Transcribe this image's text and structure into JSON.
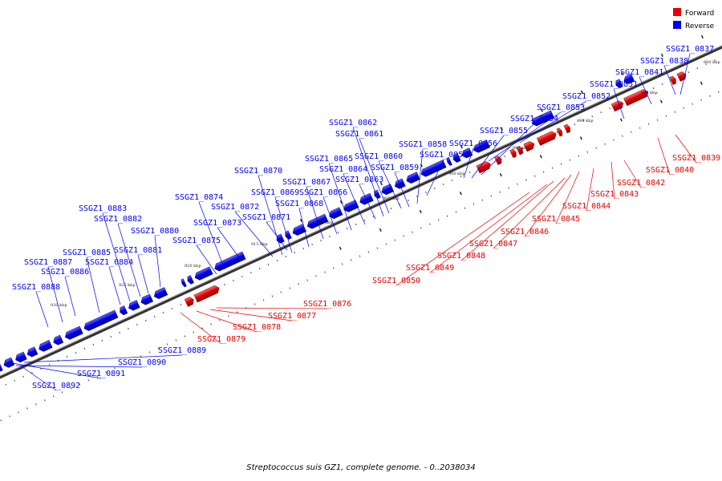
{
  "legend": {
    "forward_label": "Forward",
    "reverse_label": "Reverse",
    "forward_color": "#e80000",
    "reverse_color": "#0000f0"
  },
  "caption": "Streptococcus suis GZ1, complete genome. - 0..2038034",
  "axis_ticks": [
    {
      "label": "880 kbp"
    },
    {
      "label": "885 kbp"
    },
    {
      "label": "890 kbp"
    },
    {
      "label": "895 kbp"
    },
    {
      "label": "900 kbp"
    },
    {
      "label": "905 kbp"
    },
    {
      "label": "910 kbp"
    },
    {
      "label": "915 kbp"
    },
    {
      "label": "920 kbp"
    },
    {
      "label": "925 kbp"
    },
    {
      "label": "930 kbp"
    }
  ],
  "reverse_genes": [
    {
      "id": "SSGZ1_0837"
    },
    {
      "id": "SSGZ1_0838"
    },
    {
      "id": "SSGZ1_0841"
    },
    {
      "id": "SSGZ1_0851"
    },
    {
      "id": "SSGZ1_0852"
    },
    {
      "id": "SSGZ1_0853"
    },
    {
      "id": "SSGZ1_0854"
    },
    {
      "id": "SSGZ1_0855"
    },
    {
      "id": "SSGZ1_0856"
    },
    {
      "id": "SSGZ1_0857"
    },
    {
      "id": "SSGZ1_0858"
    },
    {
      "id": "SSGZ1_0859"
    },
    {
      "id": "SSGZ1_0860"
    },
    {
      "id": "SSGZ1_0861"
    },
    {
      "id": "SSGZ1_0862"
    },
    {
      "id": "SSGZ1_0863"
    },
    {
      "id": "SSGZ1_0864"
    },
    {
      "id": "SSGZ1_0865"
    },
    {
      "id": "SSGZ1_0866"
    },
    {
      "id": "SSGZ1_0867"
    },
    {
      "id": "SSGZ1_0868"
    },
    {
      "id": "SSGZ1_0869"
    },
    {
      "id": "SSGZ1_0870"
    },
    {
      "id": "SSGZ1_0871"
    },
    {
      "id": "SSGZ1_0872"
    },
    {
      "id": "SSGZ1_0873"
    },
    {
      "id": "SSGZ1_0874"
    },
    {
      "id": "SSGZ1_0875"
    },
    {
      "id": "SSGZ1_0880"
    },
    {
      "id": "SSGZ1_0881"
    },
    {
      "id": "SSGZ1_0882"
    },
    {
      "id": "SSGZ1_0883"
    },
    {
      "id": "SSGZ1_0884"
    },
    {
      "id": "SSGZ1_0885"
    },
    {
      "id": "SSGZ1_0886"
    },
    {
      "id": "SSGZ1_0887"
    },
    {
      "id": "SSGZ1_0888"
    },
    {
      "id": "SSGZ1_0889"
    },
    {
      "id": "SSGZ1_0890"
    },
    {
      "id": "SSGZ1_0891"
    },
    {
      "id": "SSGZ1_0892"
    }
  ],
  "forward_genes": [
    {
      "id": "SSGZ1_0839"
    },
    {
      "id": "SSGZ1_0840"
    },
    {
      "id": "SSGZ1_0842"
    },
    {
      "id": "SSGZ1_0843"
    },
    {
      "id": "SSGZ1_0844"
    },
    {
      "id": "SSGZ1_0845"
    },
    {
      "id": "SSGZ1_0846"
    },
    {
      "id": "SSGZ1_0847"
    },
    {
      "id": "SSGZ1_0848"
    },
    {
      "id": "SSGZ1_0849"
    },
    {
      "id": "SSGZ1_0850"
    },
    {
      "id": "SSGZ1_0876"
    },
    {
      "id": "SSGZ1_0877"
    },
    {
      "id": "SSGZ1_0878"
    },
    {
      "id": "SSGZ1_0879"
    }
  ]
}
